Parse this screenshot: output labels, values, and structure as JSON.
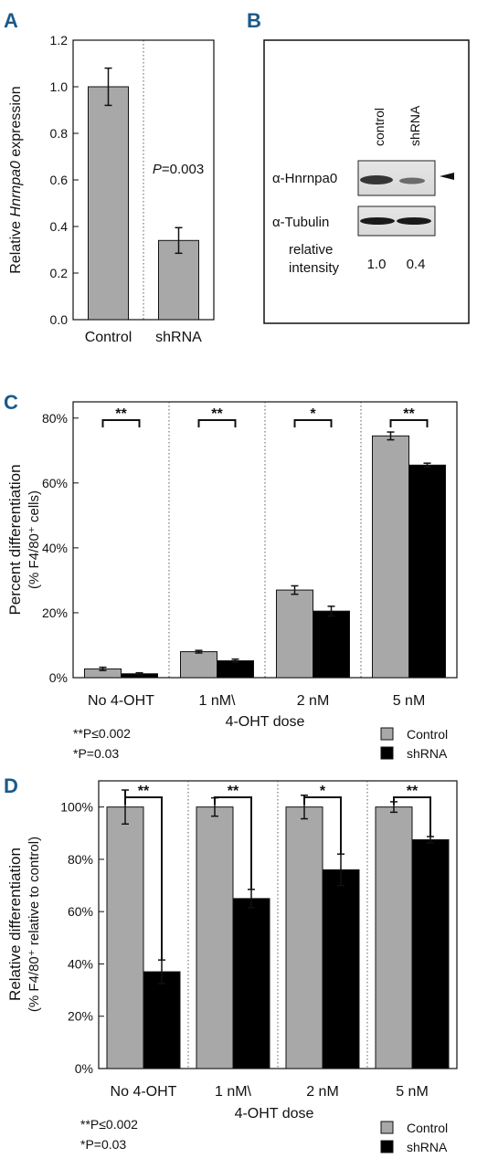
{
  "colors": {
    "control": "#a8a8a8",
    "shrna": "#000000",
    "panel_letter": "#1a5a8a"
  },
  "chart_data": [
    {
      "panel": "A",
      "type": "bar",
      "categories": [
        "Control",
        "shRNA"
      ],
      "values": [
        1.0,
        0.34
      ],
      "errors": [
        0.08,
        0.055
      ],
      "ylabel_prefix": "Relative ",
      "ylabel_italic": "Hnrnpa0",
      "ylabel_suffix": " expression",
      "ylim": [
        0,
        1.2
      ],
      "yticks": [
        "0.0",
        "0.2",
        "0.4",
        "0.6",
        "0.8",
        "1.0",
        "1.2"
      ],
      "annotation_italic": "P",
      "annotation_rest": "=0.003"
    },
    {
      "panel": "B",
      "type": "western-blot",
      "lane_labels": [
        "control",
        "shRNA"
      ],
      "row_labels": [
        "α-Hnrnpa0",
        "α-Tubulin"
      ],
      "intensity_label": [
        "relative",
        "intensity"
      ],
      "intensities": [
        "1.0",
        "0.4"
      ]
    },
    {
      "panel": "C",
      "type": "bar",
      "categories": [
        "No 4-OHT",
        "1 nM\\",
        "2 nM",
        "5 nM"
      ],
      "series": [
        {
          "name": "Control",
          "values": [
            2.7,
            8.0,
            27.0,
            74.5
          ],
          "errors": [
            0.5,
            0.4,
            1.3,
            1.2
          ]
        },
        {
          "name": "shRNA",
          "values": [
            1.2,
            5.2,
            20.5,
            65.5
          ],
          "errors": [
            0.3,
            0.5,
            1.5,
            0.6
          ]
        }
      ],
      "ylabel_line1": "Percent differentiation",
      "ylabel_line2": "(% F4/80⁺ cells)",
      "xlabel": "4-OHT dose",
      "ylim": [
        0,
        85
      ],
      "yticks": [
        "0%",
        "20%",
        "40%",
        "60%",
        "80%"
      ],
      "significance": [
        "**",
        "**",
        "*",
        "**"
      ],
      "footnotes": [
        "**P≤0.002",
        "*P=0.03"
      ],
      "legend": [
        "Control",
        "shRNA"
      ]
    },
    {
      "panel": "D",
      "type": "bar",
      "categories": [
        "No 4-OHT",
        "1 nM\\",
        "2 nM",
        "5 nM"
      ],
      "series": [
        {
          "name": "Control",
          "values": [
            100,
            100,
            100,
            100
          ],
          "errors": [
            6.5,
            3.5,
            4.5,
            2.0
          ]
        },
        {
          "name": "shRNA",
          "values": [
            37,
            65,
            76,
            87.5
          ],
          "errors": [
            4.5,
            3.5,
            6.0,
            1.2
          ]
        }
      ],
      "ylabel_line1": "Relative differentiation",
      "ylabel_line2": "(% F4/80⁺ relative to control)",
      "xlabel": "4-OHT dose",
      "ylim": [
        0,
        110
      ],
      "yticks": [
        "0%",
        "20%",
        "40%",
        "60%",
        "80%",
        "100%"
      ],
      "significance": [
        "**",
        "**",
        "*",
        "**"
      ],
      "footnotes": [
        "**P≤0.002",
        "*P=0.03"
      ],
      "legend": [
        "Control",
        "shRNA"
      ]
    }
  ],
  "panel_letters": [
    "A",
    "B",
    "C",
    "D"
  ]
}
